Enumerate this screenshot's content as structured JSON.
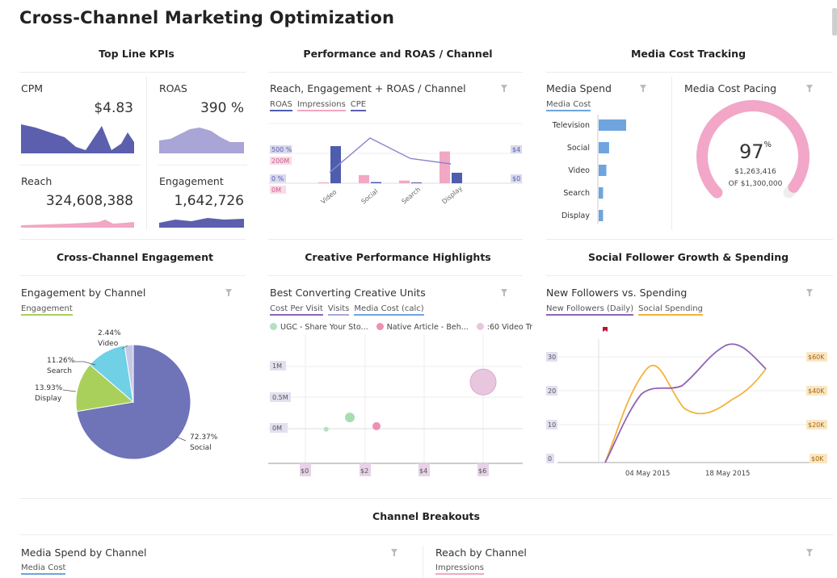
{
  "page": {
    "title": "Cross-Channel Marketing Optimization"
  },
  "sections": {
    "top_line": "Top Line KPIs",
    "performance": "Performance and ROAS / Channel",
    "media_cost": "Media Cost Tracking",
    "engagement": "Cross-Channel Engagement",
    "creative": "Creative Performance Highlights",
    "social": "Social Follower Growth & Spending",
    "breakouts": "Channel Breakouts"
  },
  "kpis": [
    {
      "label": "CPM",
      "value": "$4.83"
    },
    {
      "label": "ROAS",
      "value": "390 %"
    },
    {
      "label": "Reach",
      "value": "324,608,388"
    },
    {
      "label": "Engagement",
      "value": "1,642,726"
    }
  ],
  "colors": {
    "indigo": "#5b5fae",
    "lavender": "#a9a5d6",
    "pink": "#f2a7c4",
    "blue": "#6fa4df",
    "green": "#a9d05a",
    "cyan": "#6fd0e6",
    "orange": "#f5b13d",
    "purple": "#8e63b8",
    "gauge_pink": "#f2a7c8"
  },
  "reach_panel": {
    "title": "Reach, Engagement + ROAS / Channel",
    "legend": [
      "ROAS",
      "Impressions",
      "CPE"
    ],
    "left_ticks": [
      "500 %",
      "200M",
      "0 %",
      "0M"
    ],
    "right_ticks": [
      "$4",
      "$0"
    ],
    "chart_data": {
      "type": "bar",
      "categories": [
        "Video",
        "Social",
        "Search",
        "Display"
      ],
      "series": [
        {
          "name": "ROAS",
          "values": [
            460,
            15,
            10,
            130
          ]
        },
        {
          "name": "Impressions",
          "values": [
            5,
            45,
            15,
            175
          ]
        },
        {
          "name": "CPE",
          "values": [
            1.0,
            4.2,
            2.3,
            1.8
          ]
        }
      ]
    }
  },
  "media_spend": {
    "title": "Media Spend",
    "legend": [
      "Media Cost"
    ],
    "chart_data": {
      "type": "bar",
      "categories": [
        "Television",
        "Social",
        "Video",
        "Search",
        "Display"
      ],
      "values": [
        100,
        38,
        28,
        16,
        16
      ]
    }
  },
  "pacing": {
    "title": "Media Cost Pacing",
    "percent": "97",
    "pct_sign": "%",
    "amount": "$1,263,416",
    "of_label": "OF $1,300,000",
    "fraction": 0.97
  },
  "engagement_panel": {
    "title": "Engagement by Channel",
    "legend": [
      "Engagement"
    ],
    "chart_data": {
      "type": "pie",
      "slices": [
        {
          "label": "Social",
          "pct": "72.37%",
          "value": 72.37
        },
        {
          "label": "Display",
          "pct": "13.93%",
          "value": 13.93
        },
        {
          "label": "Search",
          "pct": "11.26%",
          "value": 11.26
        },
        {
          "label": "Video",
          "pct": "2.44%",
          "value": 2.44
        }
      ]
    }
  },
  "creative_panel": {
    "title": "Best Converting Creative Units",
    "legend": [
      "Cost Per Visit",
      "Visits",
      "Media Cost (calc)"
    ],
    "bubbles_legend": [
      "UGC - Share Your Sto...",
      "Native Article - Beh...",
      ":60 Video Tr"
    ],
    "y_ticks": [
      "1M",
      "0.5M",
      "0M"
    ],
    "x_ticks": [
      "$0",
      "$2",
      "$4",
      "$6"
    ],
    "chart_data": {
      "type": "scatter",
      "points": [
        {
          "x": 0.7,
          "y": -0.01,
          "size": 6
        },
        {
          "x": 1.5,
          "y": 0.18,
          "size": 12
        },
        {
          "x": 2.4,
          "y": 0.04,
          "size": 10
        },
        {
          "x": 6.0,
          "y": 0.75,
          "size": 28
        }
      ]
    }
  },
  "followers_panel": {
    "title": "New Followers vs. Spending",
    "legend": [
      "New Followers (Daily)",
      "Social Spending"
    ],
    "left_ticks": [
      "30",
      "20",
      "10",
      "0"
    ],
    "right_ticks": [
      "$60K",
      "$40K",
      "$20K",
      "$0K"
    ],
    "x_ticks": [
      "04 May 2015",
      "18 May 2015"
    ],
    "chart_data": {
      "type": "line",
      "series": [
        {
          "name": "New Followers (Daily)",
          "values": [
            0,
            8,
            20,
            21,
            24,
            33,
            27
          ]
        },
        {
          "name": "Social Spending",
          "values": [
            0,
            28,
            48,
            18,
            17,
            22,
            30
          ]
        }
      ]
    }
  },
  "breakouts": [
    {
      "title": "Media Spend by Channel",
      "legend": "Media Cost"
    },
    {
      "title": "Reach by Channel",
      "legend": "Impressions"
    }
  ]
}
